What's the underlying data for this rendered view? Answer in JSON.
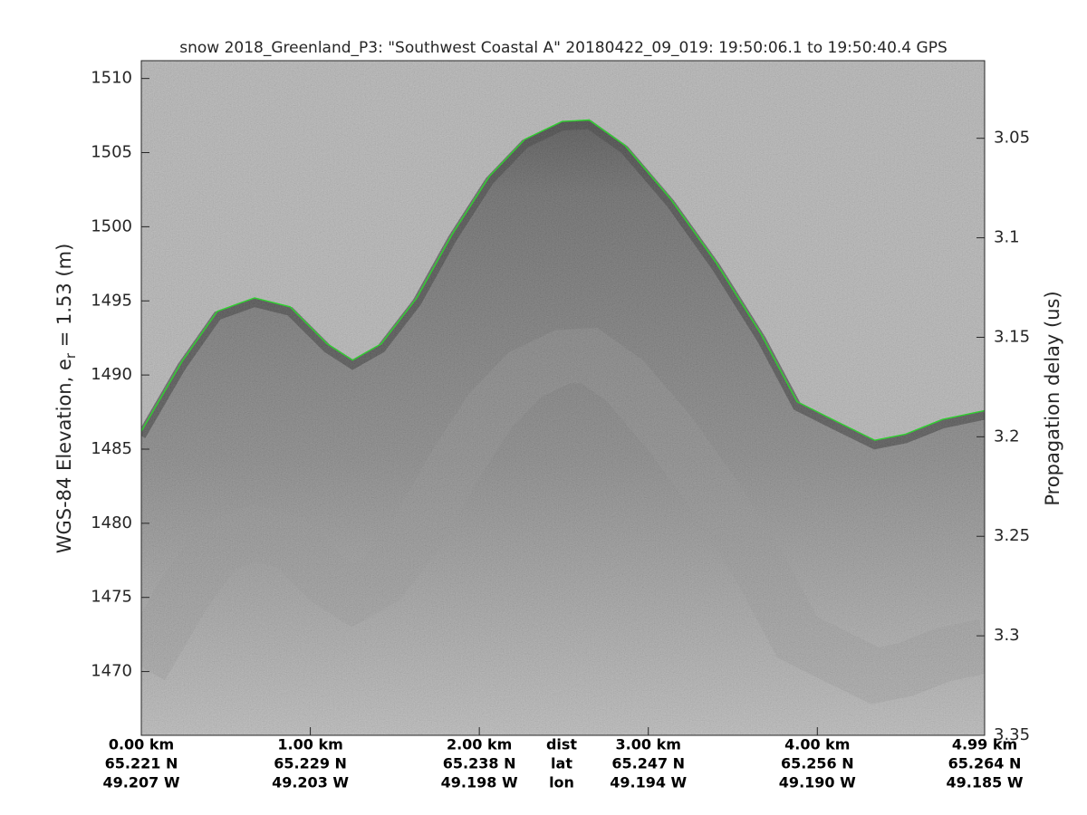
{
  "chart_data": {
    "type": "echogram",
    "title": "snow 2018_Greenland_P3: \"Southwest Coastal A\"  20180422_09_019: 19:50:06.1 to 19:50:40.4 GPS",
    "ylabel": [
      "WGS-84 Elevation, e",
      "r",
      " = 1.53 (m)"
    ],
    "y2label": "Propagation delay (us)",
    "xlim": [
      0,
      4.99
    ],
    "xticks": [
      {
        "value": 0,
        "label": "0.00 km"
      },
      {
        "value": 1,
        "label": "1.00 km"
      },
      {
        "value": 2,
        "label": "2.00 km"
      },
      {
        "value": 3,
        "label": "3.00 km"
      },
      {
        "value": 4,
        "label": "4.00 km"
      },
      {
        "value": 4.99,
        "label": "4.99 km"
      }
    ],
    "lat_labels": [
      "65.221 N",
      "65.229 N",
      "65.238 N",
      "65.247 N",
      "65.256 N",
      "65.264 N"
    ],
    "lon_labels": [
      "49.207 W",
      "49.203 W",
      "49.198 W",
      "49.194 W",
      "49.190 W",
      "49.185 W"
    ],
    "row_names": [
      "dist",
      "lat",
      "lon"
    ],
    "ylim": [
      1465.7,
      1511.2
    ],
    "yticks": [
      1470,
      1475,
      1480,
      1485,
      1490,
      1495,
      1500,
      1505,
      1510
    ],
    "y2lim": [
      3.35,
      3.011
    ],
    "y2ticks": [
      3.05,
      3.1,
      3.15,
      3.2,
      3.25,
      3.3,
      3.35
    ],
    "series": [
      {
        "color": "#2fd12f",
        "x": [
          0,
          0.24,
          0.45,
          0.67,
          0.88,
          1.1,
          1.25,
          1.42,
          1.63,
          1.84,
          2.06,
          2.27,
          2.49,
          2.65,
          2.86,
          3.13,
          3.4,
          3.67,
          3.88,
          4.09,
          4.34,
          4.52,
          4.74,
          4.99
        ],
        "values": [
          1486.2,
          1490.9,
          1494.3,
          1495.2,
          1494.6,
          1492.1,
          1491.0,
          1492.1,
          1495.2,
          1499.5,
          1503.4,
          1505.9,
          1507.1,
          1507.2,
          1505.5,
          1501.9,
          1497.6,
          1492.7,
          1488.2,
          1487.0,
          1485.6,
          1486.0,
          1487.0,
          1487.6
        ]
      }
    ]
  }
}
